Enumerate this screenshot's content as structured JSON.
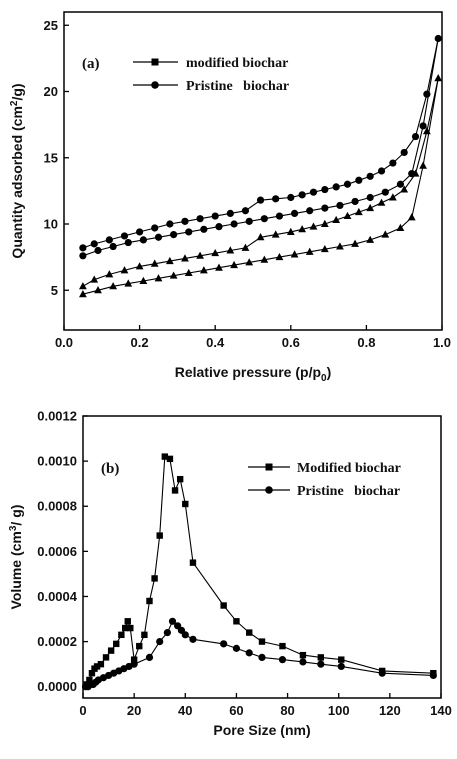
{
  "chart_data": [
    {
      "type": "line",
      "panel_label": "(a)",
      "xlabel": "Relative pressure (p/p",
      "xlabel_sub": "0",
      "xlabel_end": ")",
      "ylabel": "Quantity adsorbed (cm",
      "ylabel_sup": "2",
      "ylabel_end": "/g)",
      "xlim": [
        0.0,
        1.0
      ],
      "ylim": [
        2,
        26
      ],
      "xticks": [
        0.0,
        0.2,
        0.4,
        0.6,
        0.8,
        1.0
      ],
      "xtick_labels": [
        "0.0",
        "0.2",
        "0.4",
        "0.6",
        "0.8",
        "1.0"
      ],
      "yticks": [
        5,
        10,
        15,
        20,
        25
      ],
      "ytick_labels": [
        "5",
        "10",
        "15",
        "20",
        "25"
      ],
      "legend": [
        "modified biochar",
        "Pristine   biochar"
      ],
      "series": [
        {
          "name": "modified biochar",
          "marker": "triangle",
          "legend_marker": "square",
          "adsorption": [
            [
              0.05,
              4.7
            ],
            [
              0.09,
              5.0
            ],
            [
              0.13,
              5.3
            ],
            [
              0.17,
              5.5
            ],
            [
              0.21,
              5.7
            ],
            [
              0.25,
              5.9
            ],
            [
              0.29,
              6.1
            ],
            [
              0.33,
              6.3
            ],
            [
              0.37,
              6.5
            ],
            [
              0.41,
              6.7
            ],
            [
              0.45,
              6.9
            ],
            [
              0.49,
              7.1
            ],
            [
              0.53,
              7.3
            ],
            [
              0.57,
              7.5
            ],
            [
              0.61,
              7.7
            ],
            [
              0.65,
              7.9
            ],
            [
              0.69,
              8.1
            ],
            [
              0.73,
              8.3
            ],
            [
              0.77,
              8.5
            ],
            [
              0.81,
              8.8
            ],
            [
              0.85,
              9.2
            ],
            [
              0.89,
              9.7
            ],
            [
              0.92,
              10.5
            ],
            [
              0.95,
              14.4
            ],
            [
              0.99,
              21.0
            ]
          ],
          "desorption": [
            [
              0.99,
              21.0
            ],
            [
              0.96,
              17.0
            ],
            [
              0.93,
              13.8
            ],
            [
              0.9,
              12.6
            ],
            [
              0.87,
              12.0
            ],
            [
              0.84,
              11.6
            ],
            [
              0.81,
              11.2
            ],
            [
              0.78,
              10.9
            ],
            [
              0.75,
              10.6
            ],
            [
              0.72,
              10.3
            ],
            [
              0.69,
              10.0
            ],
            [
              0.66,
              9.8
            ],
            [
              0.63,
              9.6
            ],
            [
              0.6,
              9.4
            ],
            [
              0.56,
              9.2
            ],
            [
              0.52,
              9.0
            ],
            [
              0.48,
              8.2
            ],
            [
              0.44,
              8.0
            ],
            [
              0.4,
              7.8
            ],
            [
              0.36,
              7.6
            ],
            [
              0.32,
              7.4
            ],
            [
              0.28,
              7.2
            ],
            [
              0.24,
              7.0
            ],
            [
              0.2,
              6.8
            ],
            [
              0.16,
              6.5
            ],
            [
              0.12,
              6.2
            ],
            [
              0.08,
              5.8
            ],
            [
              0.05,
              5.3
            ]
          ]
        },
        {
          "name": "Pristine   biochar",
          "marker": "circle",
          "legend_marker": "circle",
          "adsorption": [
            [
              0.05,
              7.6
            ],
            [
              0.09,
              8.0
            ],
            [
              0.13,
              8.3
            ],
            [
              0.17,
              8.6
            ],
            [
              0.21,
              8.8
            ],
            [
              0.25,
              9.0
            ],
            [
              0.29,
              9.2
            ],
            [
              0.33,
              9.4
            ],
            [
              0.37,
              9.6
            ],
            [
              0.41,
              9.8
            ],
            [
              0.45,
              10.0
            ],
            [
              0.49,
              10.2
            ],
            [
              0.53,
              10.4
            ],
            [
              0.57,
              10.6
            ],
            [
              0.61,
              10.8
            ],
            [
              0.65,
              11.0
            ],
            [
              0.69,
              11.2
            ],
            [
              0.73,
              11.4
            ],
            [
              0.77,
              11.7
            ],
            [
              0.81,
              12.0
            ],
            [
              0.85,
              12.4
            ],
            [
              0.89,
              13.0
            ],
            [
              0.92,
              13.8
            ],
            [
              0.95,
              17.4
            ],
            [
              0.99,
              24.0
            ]
          ],
          "desorption": [
            [
              0.99,
              24.0
            ],
            [
              0.96,
              19.8
            ],
            [
              0.93,
              16.6
            ],
            [
              0.9,
              15.4
            ],
            [
              0.87,
              14.6
            ],
            [
              0.84,
              14.0
            ],
            [
              0.81,
              13.6
            ],
            [
              0.78,
              13.3
            ],
            [
              0.75,
              13.0
            ],
            [
              0.72,
              12.8
            ],
            [
              0.69,
              12.6
            ],
            [
              0.66,
              12.4
            ],
            [
              0.63,
              12.2
            ],
            [
              0.6,
              12.0
            ],
            [
              0.56,
              11.9
            ],
            [
              0.52,
              11.8
            ],
            [
              0.48,
              11.0
            ],
            [
              0.44,
              10.8
            ],
            [
              0.4,
              10.6
            ],
            [
              0.36,
              10.4
            ],
            [
              0.32,
              10.2
            ],
            [
              0.28,
              10.0
            ],
            [
              0.24,
              9.7
            ],
            [
              0.2,
              9.4
            ],
            [
              0.16,
              9.1
            ],
            [
              0.12,
              8.8
            ],
            [
              0.08,
              8.5
            ],
            [
              0.05,
              8.2
            ]
          ]
        }
      ]
    },
    {
      "type": "line",
      "panel_label": "(b)",
      "xlabel": "Pore Size (nm)",
      "ylabel": "Volume (cm",
      "ylabel_sup": "3",
      "ylabel_end": "/ g)",
      "xlim": [
        0,
        140
      ],
      "ylim": [
        -5e-05,
        0.0012
      ],
      "xticks": [
        0,
        20,
        40,
        60,
        80,
        100,
        120,
        140
      ],
      "xtick_labels": [
        "0",
        "20",
        "40",
        "60",
        "80",
        "100",
        "120",
        "140"
      ],
      "yticks": [
        0.0,
        0.0002,
        0.0004,
        0.0006,
        0.0008,
        0.001,
        0.0012
      ],
      "ytick_labels": [
        "0.0000",
        "0.0002",
        "0.0004",
        "0.0006",
        "0.0008",
        "0.0010",
        "0.0012"
      ],
      "legend": [
        "Modified biochar",
        "Pristine   biochar"
      ],
      "series": [
        {
          "name": "Modified biochar",
          "marker": "square",
          "x": [
            1.5,
            2.5,
            3.5,
            4.5,
            5.5,
            7,
            9,
            11,
            13,
            15,
            16.5,
            17.5,
            18.5,
            20,
            22,
            24,
            26,
            28,
            30,
            32,
            34,
            36,
            38,
            40,
            43,
            55,
            60,
            65,
            70,
            78,
            86,
            93,
            101,
            117,
            137
          ],
          "y": [
            1e-05,
            3e-05,
            6e-05,
            8e-05,
            9e-05,
            0.0001,
            0.00013,
            0.00016,
            0.00019,
            0.00023,
            0.00026,
            0.00029,
            0.00026,
            0.00012,
            0.00018,
            0.00023,
            0.00038,
            0.00048,
            0.00067,
            0.00102,
            0.00101,
            0.00087,
            0.00092,
            0.00081,
            0.00055,
            0.00036,
            0.00029,
            0.00024,
            0.0002,
            0.00018,
            0.00014,
            0.00013,
            0.00012,
            7e-05,
            6e-05
          ]
        },
        {
          "name": "Pristine   biochar",
          "marker": "circle",
          "x": [
            1,
            2,
            3,
            4,
            5,
            6,
            8,
            10,
            12,
            14,
            16,
            18,
            20,
            26,
            30,
            33,
            35,
            37,
            38.5,
            40,
            43,
            55,
            60,
            65,
            70,
            78,
            86,
            93,
            101,
            117,
            137
          ],
          "y": [
            0.0,
            0.0,
            1e-05,
            1e-05,
            2e-05,
            3e-05,
            4e-05,
            5e-05,
            6e-05,
            7e-05,
            8e-05,
            9e-05,
            0.0001,
            0.00013,
            0.0002,
            0.00024,
            0.00029,
            0.00027,
            0.00025,
            0.00023,
            0.00021,
            0.00019,
            0.00017,
            0.00015,
            0.00013,
            0.00012,
            0.00011,
            0.0001,
            9e-05,
            6e-05,
            5e-05
          ]
        }
      ]
    }
  ]
}
